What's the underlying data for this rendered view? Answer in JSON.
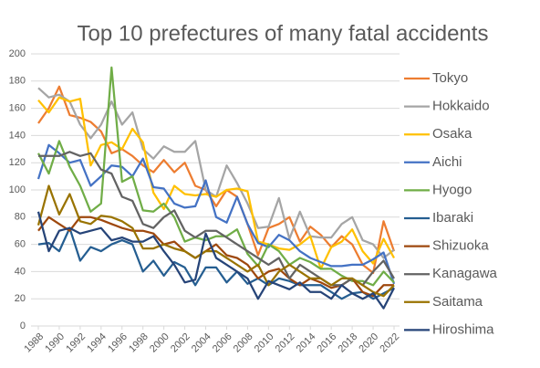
{
  "chart_data": {
    "type": "line",
    "title": "Top 10 prefectures of many fatal accidents",
    "x": [
      1988,
      1989,
      1990,
      1991,
      1992,
      1993,
      1994,
      1995,
      1996,
      1997,
      1998,
      1999,
      2000,
      2001,
      2002,
      2003,
      2004,
      2005,
      2006,
      2007,
      2008,
      2009,
      2010,
      2011,
      2012,
      2013,
      2014,
      2015,
      2016,
      2017,
      2018,
      2019,
      2020,
      2021,
      2022
    ],
    "xlim": [
      1988,
      2022
    ],
    "xticks": [
      1988,
      1990,
      1992,
      1994,
      1996,
      1998,
      2000,
      2002,
      2004,
      2006,
      2008,
      2010,
      2012,
      2014,
      2016,
      2018,
      2020,
      2022
    ],
    "ylim": [
      0,
      200
    ],
    "yticks": [
      0,
      20,
      40,
      60,
      80,
      100,
      120,
      140,
      160,
      180,
      200
    ],
    "grid": true,
    "legend": "right",
    "series": [
      {
        "name": "Tokyo",
        "color": "#ed7d31",
        "values": [
          149,
          160,
          176,
          155,
          153,
          150,
          143,
          127,
          130,
          125,
          118,
          113,
          122,
          113,
          120,
          103,
          100,
          88,
          100,
          95,
          75,
          52,
          72,
          75,
          80,
          62,
          73,
          67,
          58,
          66,
          60,
          45,
          39,
          77,
          55
        ]
      },
      {
        "name": "Hokkaido",
        "color": "#a5a5a5",
        "values": [
          175,
          168,
          170,
          165,
          148,
          138,
          148,
          165,
          148,
          157,
          130,
          123,
          132,
          128,
          128,
          136,
          100,
          95,
          118,
          105,
          90,
          72,
          73,
          94,
          64,
          84,
          66,
          65,
          65,
          75,
          80,
          63,
          60,
          50,
          56
        ]
      },
      {
        "name": "Osaka",
        "color": "#ffc000",
        "values": [
          166,
          157,
          168,
          165,
          167,
          118,
          133,
          135,
          130,
          145,
          135,
          98,
          86,
          103,
          97,
          96,
          97,
          95,
          100,
          101,
          99,
          62,
          60,
          57,
          56,
          60,
          66,
          42,
          58,
          62,
          71,
          55,
          46,
          64,
          50
        ]
      },
      {
        "name": "Aichi",
        "color": "#4472c4",
        "values": [
          108,
          133,
          127,
          120,
          122,
          103,
          110,
          118,
          117,
          110,
          123,
          102,
          101,
          90,
          87,
          88,
          107,
          80,
          76,
          95,
          75,
          61,
          58,
          67,
          63,
          55,
          50,
          47,
          44,
          44,
          45,
          45,
          49,
          54,
          31
        ]
      },
      {
        "name": "Hyogo",
        "color": "#70ad47",
        "values": [
          127,
          112,
          136,
          117,
          103,
          84,
          90,
          190,
          106,
          110,
          85,
          84,
          90,
          80,
          62,
          65,
          63,
          66,
          66,
          71,
          53,
          44,
          60,
          55,
          45,
          50,
          47,
          42,
          42,
          37,
          33,
          33,
          30,
          40,
          32
        ]
      },
      {
        "name": "Ibaraki",
        "color": "#255e91",
        "values": [
          60,
          61,
          55,
          72,
          48,
          58,
          55,
          60,
          63,
          60,
          40,
          48,
          37,
          47,
          43,
          30,
          43,
          43,
          32,
          40,
          31,
          35,
          30,
          35,
          33,
          30,
          30,
          30,
          25,
          20,
          24,
          25,
          20,
          24,
          28
        ]
      },
      {
        "name": "Shizuoka",
        "color": "#9e480e",
        "values": [
          70,
          80,
          75,
          70,
          80,
          80,
          78,
          75,
          72,
          70,
          70,
          68,
          60,
          62,
          55,
          50,
          55,
          60,
          52,
          50,
          45,
          35,
          40,
          42,
          35,
          30,
          35,
          32,
          28,
          30,
          35,
          25,
          22,
          30,
          30
        ]
      },
      {
        "name": "Kanagawa",
        "color": "#636363",
        "values": [
          125,
          125,
          125,
          128,
          125,
          127,
          115,
          112,
          95,
          92,
          75,
          72,
          80,
          85,
          70,
          65,
          70,
          70,
          65,
          60,
          55,
          50,
          45,
          50,
          35,
          45,
          40,
          35,
          30,
          30,
          35,
          30,
          40,
          48,
          35
        ]
      },
      {
        "name": "Saitama",
        "color": "#997300",
        "values": [
          74,
          103,
          82,
          97,
          77,
          75,
          81,
          80,
          77,
          72,
          57,
          57,
          60,
          57,
          55,
          50,
          55,
          55,
          50,
          45,
          40,
          45,
          30,
          40,
          45,
          40,
          35,
          35,
          30,
          35,
          35,
          30,
          25,
          22,
          30
        ]
      },
      {
        "name": "Hiroshima",
        "color": "#264478",
        "values": [
          84,
          55,
          70,
          72,
          68,
          70,
          72,
          63,
          65,
          62,
          62,
          66,
          55,
          45,
          32,
          34,
          68,
          50,
          45,
          40,
          35,
          20,
          33,
          30,
          27,
          32,
          25,
          25,
          20,
          30,
          24,
          20,
          24,
          13,
          28
        ]
      }
    ]
  }
}
